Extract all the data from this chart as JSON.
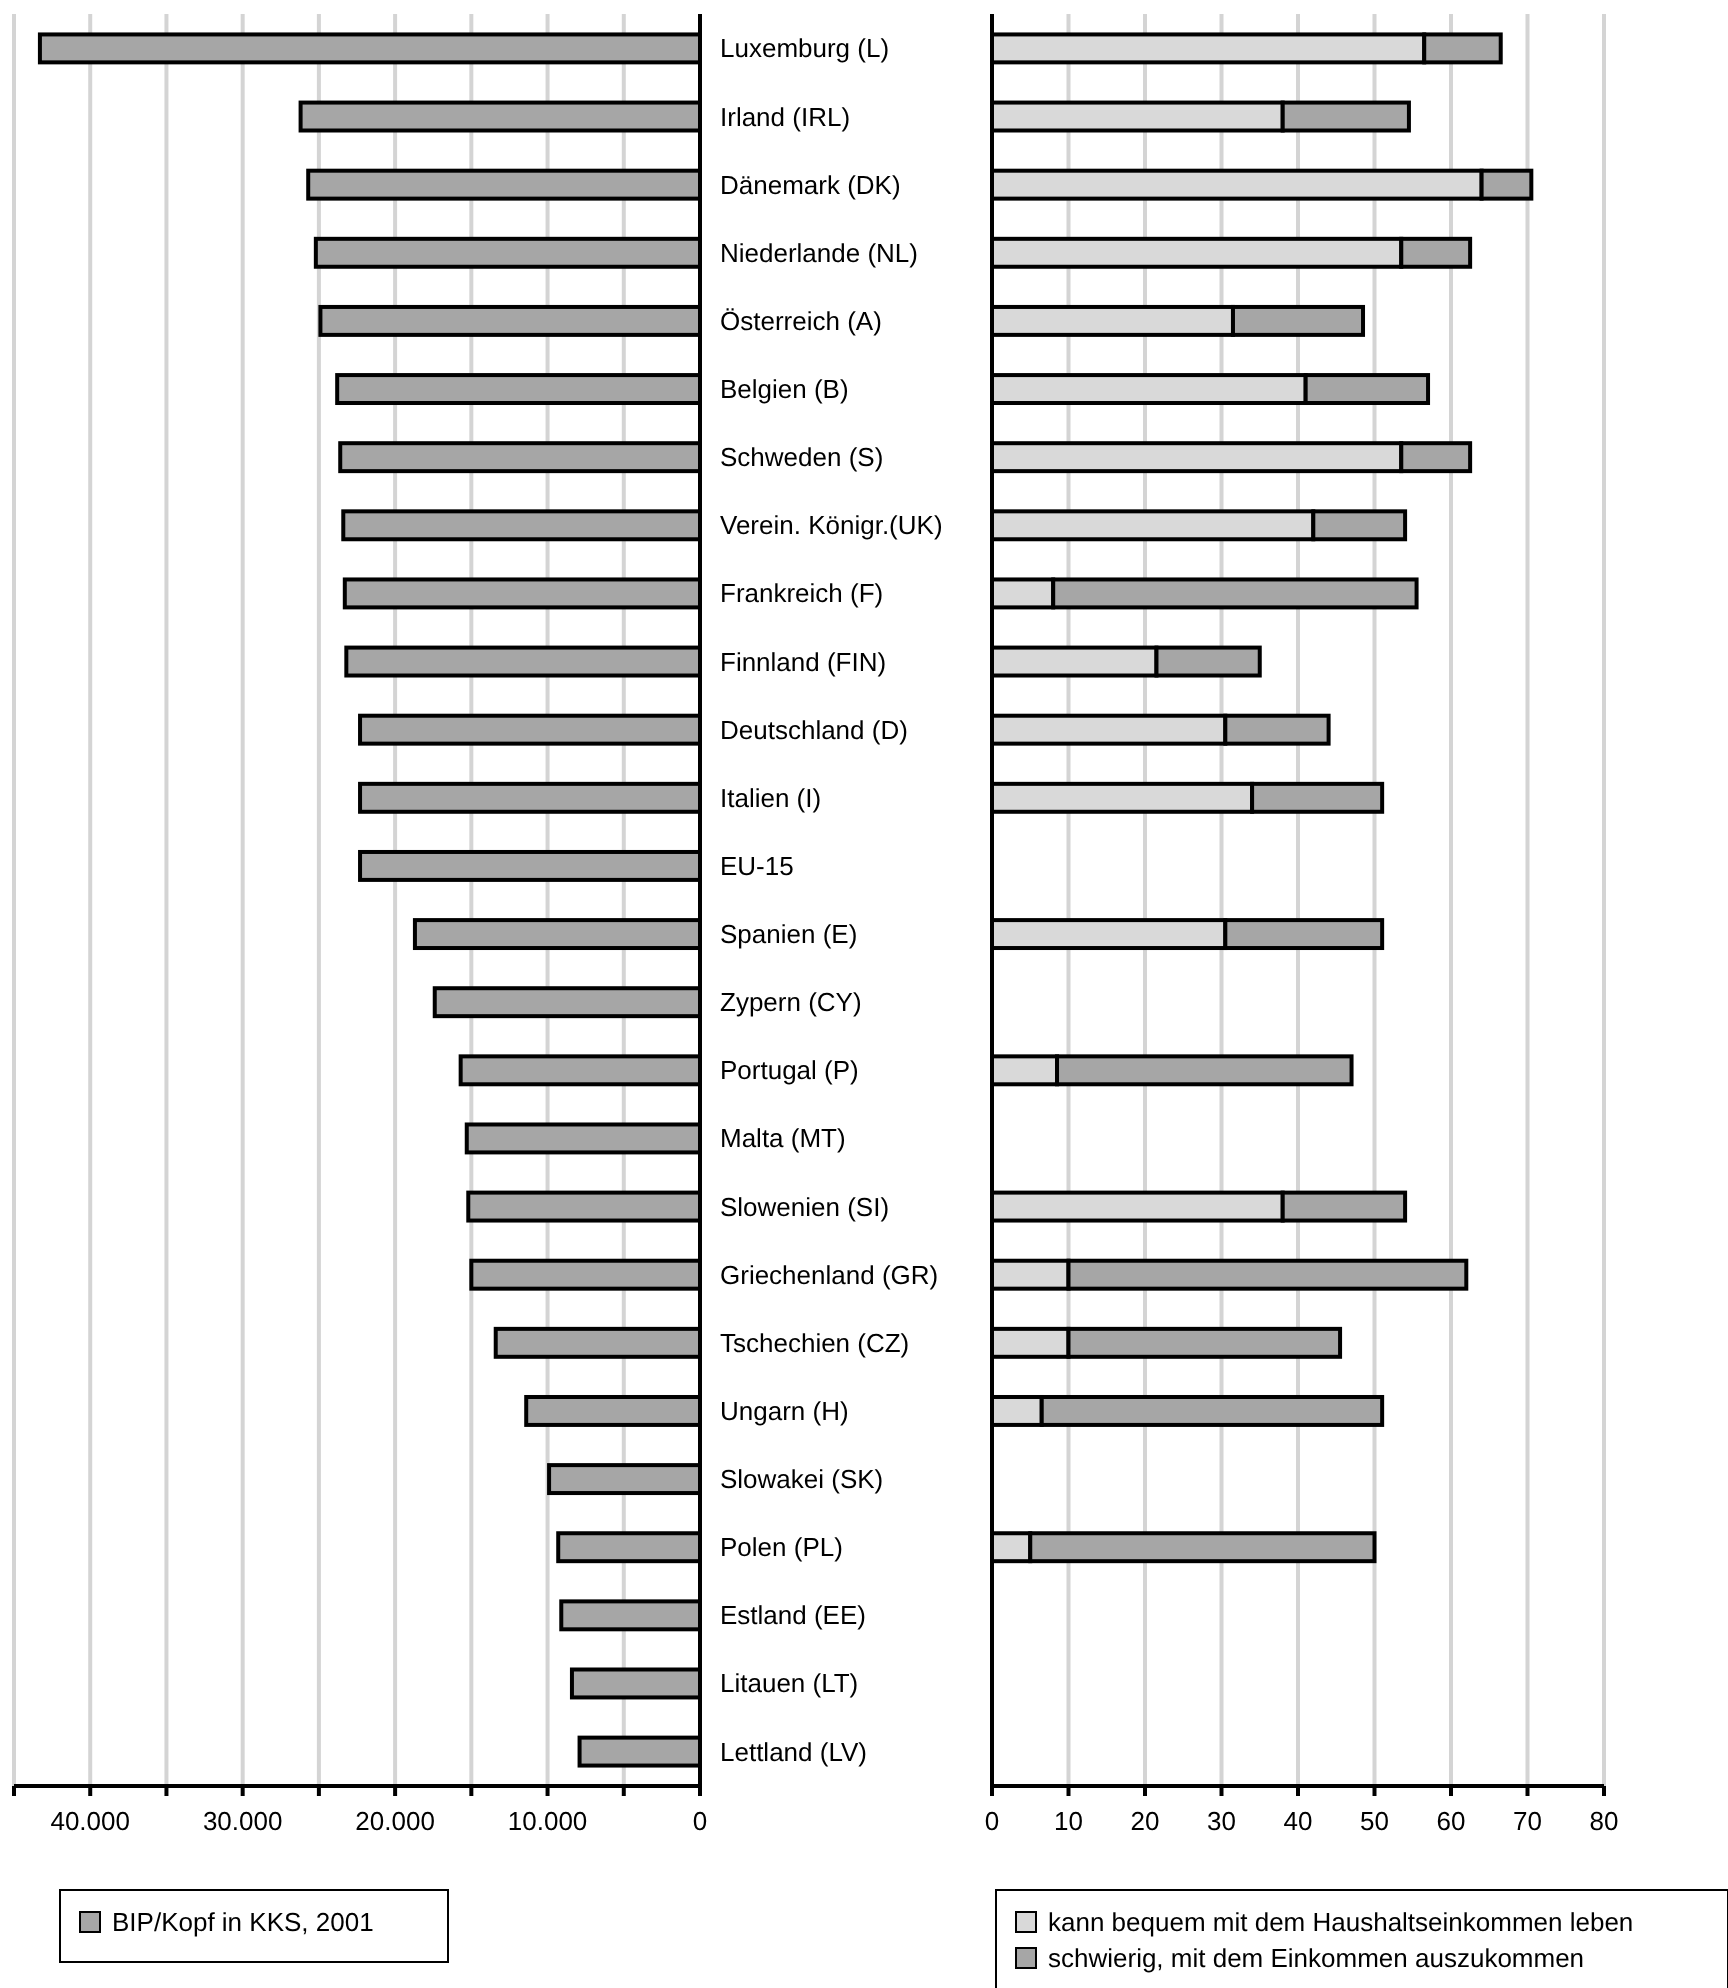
{
  "chart_data": [
    {
      "type": "bar",
      "orientation": "horizontal",
      "categories": [
        "Luxemburg (L)",
        "Irland (IRL)",
        "Dänemark (DK)",
        "Niederlande (NL)",
        "Österreich (A)",
        "Belgien (B)",
        "Schweden (S)",
        "Verein. Königr.(UK)",
        "Frankreich (F)",
        "Finnland (FIN)",
        "Deutschland (D)",
        "Italien (I)",
        "EU-15",
        "Spanien (E)",
        "Zypern (CY)",
        "Portugal (P)",
        "Malta (MT)",
        "Slowenien (SI)",
        "Griechenland (GR)",
        "Tschechien (CZ)",
        "Ungarn (H)",
        "Slowakei (SK)",
        "Polen (PL)",
        "Estland (EE)",
        "Litauen (LT)",
        "Lettland (LV)"
      ],
      "series": [
        {
          "name": "BIP/Kopf in KKS,  2001",
          "color": "#a6a6a6",
          "values": [
            43300,
            26200,
            25700,
            25200,
            24900,
            23800,
            23600,
            23400,
            23300,
            23200,
            22300,
            22300,
            22300,
            18700,
            17400,
            15700,
            15300,
            15200,
            15000,
            13400,
            11400,
            9900,
            9300,
            9100,
            8400,
            7900
          ]
        }
      ],
      "xlim": [
        45000,
        0
      ],
      "xticks": [
        {
          "value": 45000,
          "label": null
        },
        {
          "value": 40000,
          "label": "40.000"
        },
        {
          "value": 35000,
          "label": null
        },
        {
          "value": 30000,
          "label": "30.000"
        },
        {
          "value": 25000,
          "label": null
        },
        {
          "value": 20000,
          "label": "20.000"
        },
        {
          "value": 15000,
          "label": null
        },
        {
          "value": 10000,
          "label": "10.000"
        },
        {
          "value": 5000,
          "label": null
        },
        0
      ],
      "grid": "x",
      "legend": "bottom"
    },
    {
      "type": "bar",
      "orientation": "horizontal",
      "stacked": true,
      "categories": [
        null,
        null,
        null,
        null,
        null,
        null,
        null,
        null,
        null,
        null,
        null,
        null,
        null,
        null,
        null,
        null,
        null,
        null,
        null,
        null,
        null,
        null,
        null,
        null,
        null,
        null
      ],
      "series": [
        {
          "name": "kann bequem mit dem Haushaltseinkommen leben",
          "color": "#d9d9d9",
          "values": [
            56.5,
            38,
            64,
            53.5,
            31.5,
            41,
            53.5,
            42,
            8,
            21.5,
            30.5,
            34,
            null,
            30.5,
            null,
            8.5,
            null,
            38,
            10,
            10,
            6.5,
            null,
            5,
            null,
            null,
            null
          ]
        },
        {
          "name": "schwierig, mit dem Einkommen auszukommen",
          "color": "#a6a6a6",
          "values": [
            10,
            16.5,
            6.5,
            9,
            17,
            16,
            9,
            12,
            47.5,
            13.5,
            13.5,
            17,
            null,
            20.5,
            null,
            38.5,
            null,
            16,
            52,
            35.5,
            44.5,
            null,
            45,
            null,
            null,
            null
          ]
        }
      ],
      "xlim": [
        0,
        80
      ],
      "xticks": [
        0,
        10,
        20,
        30,
        40,
        50,
        60,
        70,
        80
      ],
      "grid": "x",
      "legend": "bottom",
      "tick_labels": "x"
    }
  ]
}
